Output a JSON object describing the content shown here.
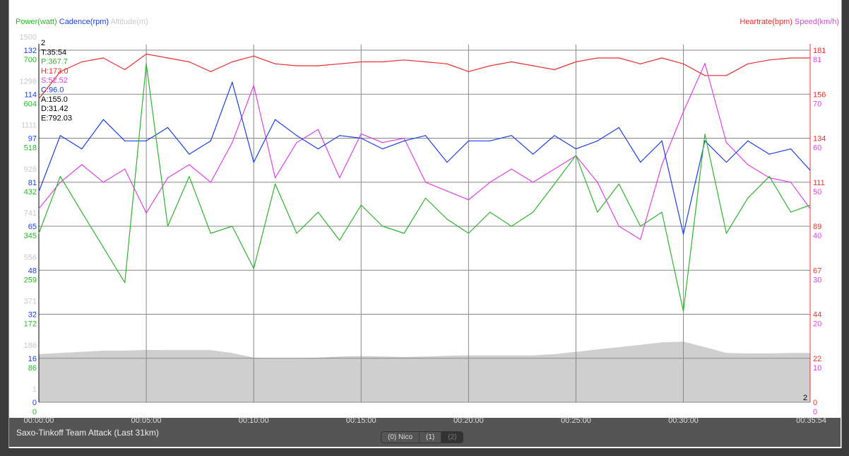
{
  "legend_left": [
    {
      "label": "Power(watt)",
      "color": "#2db52d"
    },
    {
      "label": "Cadence(rpm)",
      "color": "#1a3ee8"
    },
    {
      "label": "Altitude(m)",
      "color": "#c8c8c8"
    }
  ],
  "legend_right": [
    {
      "label": "Heartrate(bpm)",
      "color": "#e83030"
    },
    {
      "label": "Speed(km/h)",
      "color": "#e040e8"
    }
  ],
  "tooltip": [
    {
      "text": "2",
      "color": "#000"
    },
    {
      "text": "T:35:54",
      "color": "#000"
    },
    {
      "text": "P:367.7",
      "color": "#2db52d"
    },
    {
      "text": "H:173.0",
      "color": "#e83030"
    },
    {
      "text": "S:52.52",
      "color": "#e040e8"
    },
    {
      "text": "C:96.0",
      "color": "#1a3ee8"
    },
    {
      "text": "A:155.0",
      "color": "#000"
    },
    {
      "text": "D:31.42",
      "color": "#000"
    },
    {
      "text": "E:792.03",
      "color": "#000"
    }
  ],
  "corner_label": "2",
  "bottom_bar": {
    "title": "Saxo-Tinkoff Team Attack (Last 31km)",
    "buttons": [
      {
        "label": "(0) Nico",
        "selected": false
      },
      {
        "label": "(1)",
        "selected": false
      },
      {
        "label": "(2)",
        "selected": true
      }
    ]
  },
  "chart_data": {
    "type": "line",
    "xlabel": "time",
    "x_ticks": [
      "00:00:00",
      "00:05:00",
      "00:10:00",
      "00:15:00",
      "00:20:00",
      "00:25:00",
      "00:30:00",
      "00:35:54"
    ],
    "x_minutes": [
      0,
      1,
      2,
      3,
      4,
      5,
      6,
      7,
      8,
      9,
      10,
      11,
      12,
      13,
      14,
      15,
      16,
      17,
      18,
      19,
      20,
      21,
      22,
      23,
      24,
      25,
      26,
      27,
      28,
      29,
      30,
      31,
      32,
      33,
      34,
      35,
      35.9
    ],
    "axes": {
      "altitude": {
        "ticks": [
          "1",
          "186",
          "371",
          "556",
          "741",
          "926",
          "1111",
          "1296",
          "1500"
        ],
        "range": [
          0,
          1500
        ],
        "color": "#c8c8c8"
      },
      "cadence": {
        "ticks": [
          "0",
          "16",
          "32",
          "48",
          "65",
          "81",
          "97",
          "114",
          "132"
        ],
        "range": [
          0,
          132
        ],
        "color": "#1a3ee8"
      },
      "power": {
        "ticks": [
          "0",
          "86",
          "172",
          "259",
          "345",
          "432",
          "518",
          "604",
          "700"
        ],
        "range": [
          0,
          700
        ],
        "color": "#2db52d"
      },
      "heartrate": {
        "ticks": [
          "0",
          "22",
          "44",
          "67",
          "89",
          "111",
          "134",
          "156",
          "181"
        ],
        "range": [
          0,
          181
        ],
        "color": "#e83030"
      },
      "speed": {
        "ticks": [
          "0",
          "10",
          "20",
          "30",
          "40",
          "50",
          "60",
          "70",
          "81"
        ],
        "range": [
          0,
          80
        ],
        "color": "#e040e8"
      }
    },
    "series": [
      {
        "name": "Altitude",
        "axis": "altitude",
        "values": [
          205,
          210,
          215,
          220,
          220,
          223,
          222,
          222,
          222,
          210,
          190,
          187,
          188,
          190,
          195,
          197,
          195,
          193,
          195,
          198,
          200,
          200,
          200,
          200,
          205,
          215,
          225,
          235,
          245,
          255,
          258,
          235,
          210,
          208,
          208,
          210,
          210
        ]
      },
      {
        "name": "Heartrate",
        "axis": "heartrate",
        "values": [
          156,
          170,
          175,
          177,
          171,
          179,
          177,
          175,
          170,
          175,
          178,
          174,
          173,
          173,
          174,
          175,
          175,
          176,
          175,
          174,
          170,
          173,
          175,
          173,
          171,
          175,
          177,
          177,
          174,
          177,
          174,
          168,
          168,
          174,
          176,
          177,
          177
        ]
      },
      {
        "name": "Speed",
        "axis": "speed",
        "values": [
          44,
          50,
          54,
          50,
          53,
          43,
          51,
          54,
          50,
          59,
          72,
          51,
          59,
          62,
          51,
          61,
          59,
          60,
          50,
          48,
          46,
          50,
          53,
          50,
          53,
          56,
          50,
          40,
          37,
          54,
          66,
          77,
          59,
          54,
          51,
          50,
          44
        ]
      },
      {
        "name": "Cadence",
        "axis": "cadence",
        "values": [
          79,
          100,
          95,
          106,
          98,
          98,
          103,
          93,
          98,
          120,
          90,
          106,
          100,
          95,
          100,
          99,
          95,
          98,
          100,
          90,
          98,
          98,
          100,
          93,
          100,
          95,
          98,
          103,
          90,
          98,
          63,
          98,
          90,
          98,
          93,
          95,
          87
        ]
      },
      {
        "name": "Power",
        "axis": "power",
        "values": [
          336,
          449,
          378,
          308,
          238,
          673,
          350,
          449,
          336,
          350,
          266,
          434,
          336,
          378,
          322,
          392,
          350,
          336,
          406,
          364,
          336,
          378,
          350,
          378,
          434,
          491,
          378,
          434,
          350,
          378,
          181,
          533,
          336,
          406,
          449,
          378,
          392
        ]
      }
    ]
  }
}
